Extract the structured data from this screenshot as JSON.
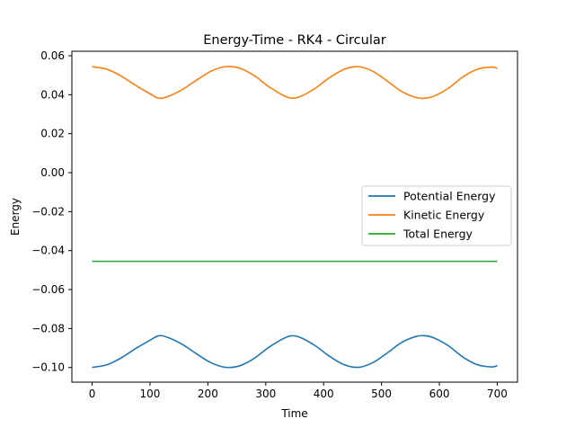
{
  "chart_data": {
    "type": "line",
    "title": "Energy-Time - RK4 - Circular",
    "xlabel": "Time",
    "ylabel": "Energy",
    "xlim": [
      -35,
      735
    ],
    "ylim": [
      -0.1075,
      0.0623
    ],
    "xticks": [
      0,
      100,
      200,
      300,
      400,
      500,
      600,
      700
    ],
    "xtick_labels": [
      "0",
      "100",
      "200",
      "300",
      "400",
      "500",
      "600",
      "700"
    ],
    "yticks": [
      -0.1,
      -0.08,
      -0.06,
      -0.04,
      -0.02,
      0.0,
      0.02,
      0.04,
      0.06
    ],
    "ytick_labels": [
      "−0.10",
      "−0.08",
      "−0.06",
      "−0.04",
      "−0.02",
      "0.00",
      "0.02",
      "0.04",
      "0.06"
    ],
    "legend_position": "center-right",
    "grid": false,
    "series": [
      {
        "name": "Potential Energy",
        "color": "#1f77b4",
        "x": [
          0,
          25,
          50,
          75,
          100,
          115,
          130,
          155,
          180,
          205,
          230,
          255,
          280,
          305,
          330,
          345,
          360,
          385,
          410,
          435,
          460,
          485,
          510,
          535,
          560,
          575,
          590,
          615,
          640,
          665,
          690,
          700
        ],
        "y": [
          -0.0999,
          -0.0986,
          -0.0951,
          -0.0903,
          -0.086,
          -0.0837,
          -0.0845,
          -0.088,
          -0.0929,
          -0.0975,
          -0.0999,
          -0.0991,
          -0.0953,
          -0.0897,
          -0.0852,
          -0.0837,
          -0.0846,
          -0.0887,
          -0.0942,
          -0.0985,
          -0.0999,
          -0.0975,
          -0.0925,
          -0.0871,
          -0.084,
          -0.0837,
          -0.0847,
          -0.0887,
          -0.0945,
          -0.0985,
          -0.0997,
          -0.099
        ]
      },
      {
        "name": "Kinetic Energy",
        "color": "#ff7f0e",
        "x": [
          0,
          25,
          50,
          75,
          100,
          115,
          130,
          155,
          180,
          205,
          230,
          255,
          280,
          305,
          330,
          345,
          360,
          385,
          410,
          435,
          460,
          485,
          510,
          535,
          560,
          575,
          590,
          615,
          640,
          665,
          690,
          700
        ],
        "y": [
          0.0544,
          0.0531,
          0.0496,
          0.0448,
          0.0405,
          0.0382,
          0.039,
          0.0425,
          0.0474,
          0.052,
          0.0544,
          0.0536,
          0.0498,
          0.0442,
          0.0397,
          0.0382,
          0.0391,
          0.0432,
          0.0487,
          0.053,
          0.0544,
          0.052,
          0.047,
          0.0416,
          0.0385,
          0.0382,
          0.0392,
          0.0432,
          0.049,
          0.053,
          0.0542,
          0.0535
        ]
      },
      {
        "name": "Total Energy",
        "color": "#2ca02c",
        "x": [
          0,
          700
        ],
        "y": [
          -0.0455,
          -0.0455
        ]
      }
    ]
  }
}
